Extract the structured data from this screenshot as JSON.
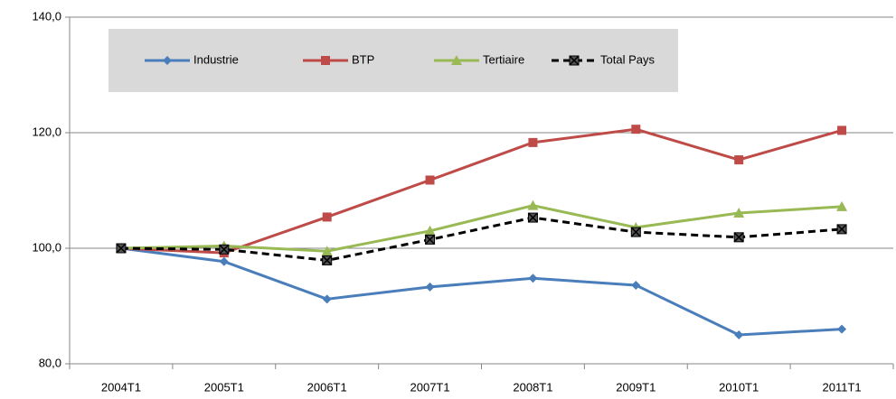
{
  "chart_data": {
    "type": "line",
    "categories": [
      "2004T1",
      "2005T1",
      "2006T1",
      "2007T1",
      "2008T1",
      "2009T1",
      "2010T1",
      "2011T1"
    ],
    "series": [
      {
        "name": "Industrie",
        "color": "#4a7ebb",
        "marker": "diamond",
        "values": [
          100,
          97.7,
          91.2,
          93.3,
          94.8,
          93.6,
          85.0,
          86.0
        ]
      },
      {
        "name": "BTP",
        "color": "#be4b48",
        "marker": "square",
        "values": [
          100,
          99.2,
          105.4,
          111.8,
          118.3,
          120.6,
          115.3,
          120.4
        ]
      },
      {
        "name": "Tertiaire",
        "color": "#98b954",
        "marker": "triangle",
        "values": [
          100,
          100.4,
          99.5,
          103.0,
          107.4,
          103.6,
          106.1,
          107.2
        ]
      },
      {
        "name": "Total Pays",
        "color": "#000000",
        "marker": "x-square",
        "dashed": true,
        "values": [
          100,
          99.8,
          97.9,
          101.5,
          105.3,
          102.8,
          101.9,
          103.3
        ]
      }
    ],
    "ylim": [
      80,
      140
    ],
    "yticks": [
      {
        "value": 80,
        "label": "80,0"
      },
      {
        "value": 100,
        "label": "100,0"
      },
      {
        "value": 120,
        "label": "120,0"
      },
      {
        "value": 140,
        "label": "140,0"
      }
    ],
    "grid": true,
    "legend": "top"
  }
}
